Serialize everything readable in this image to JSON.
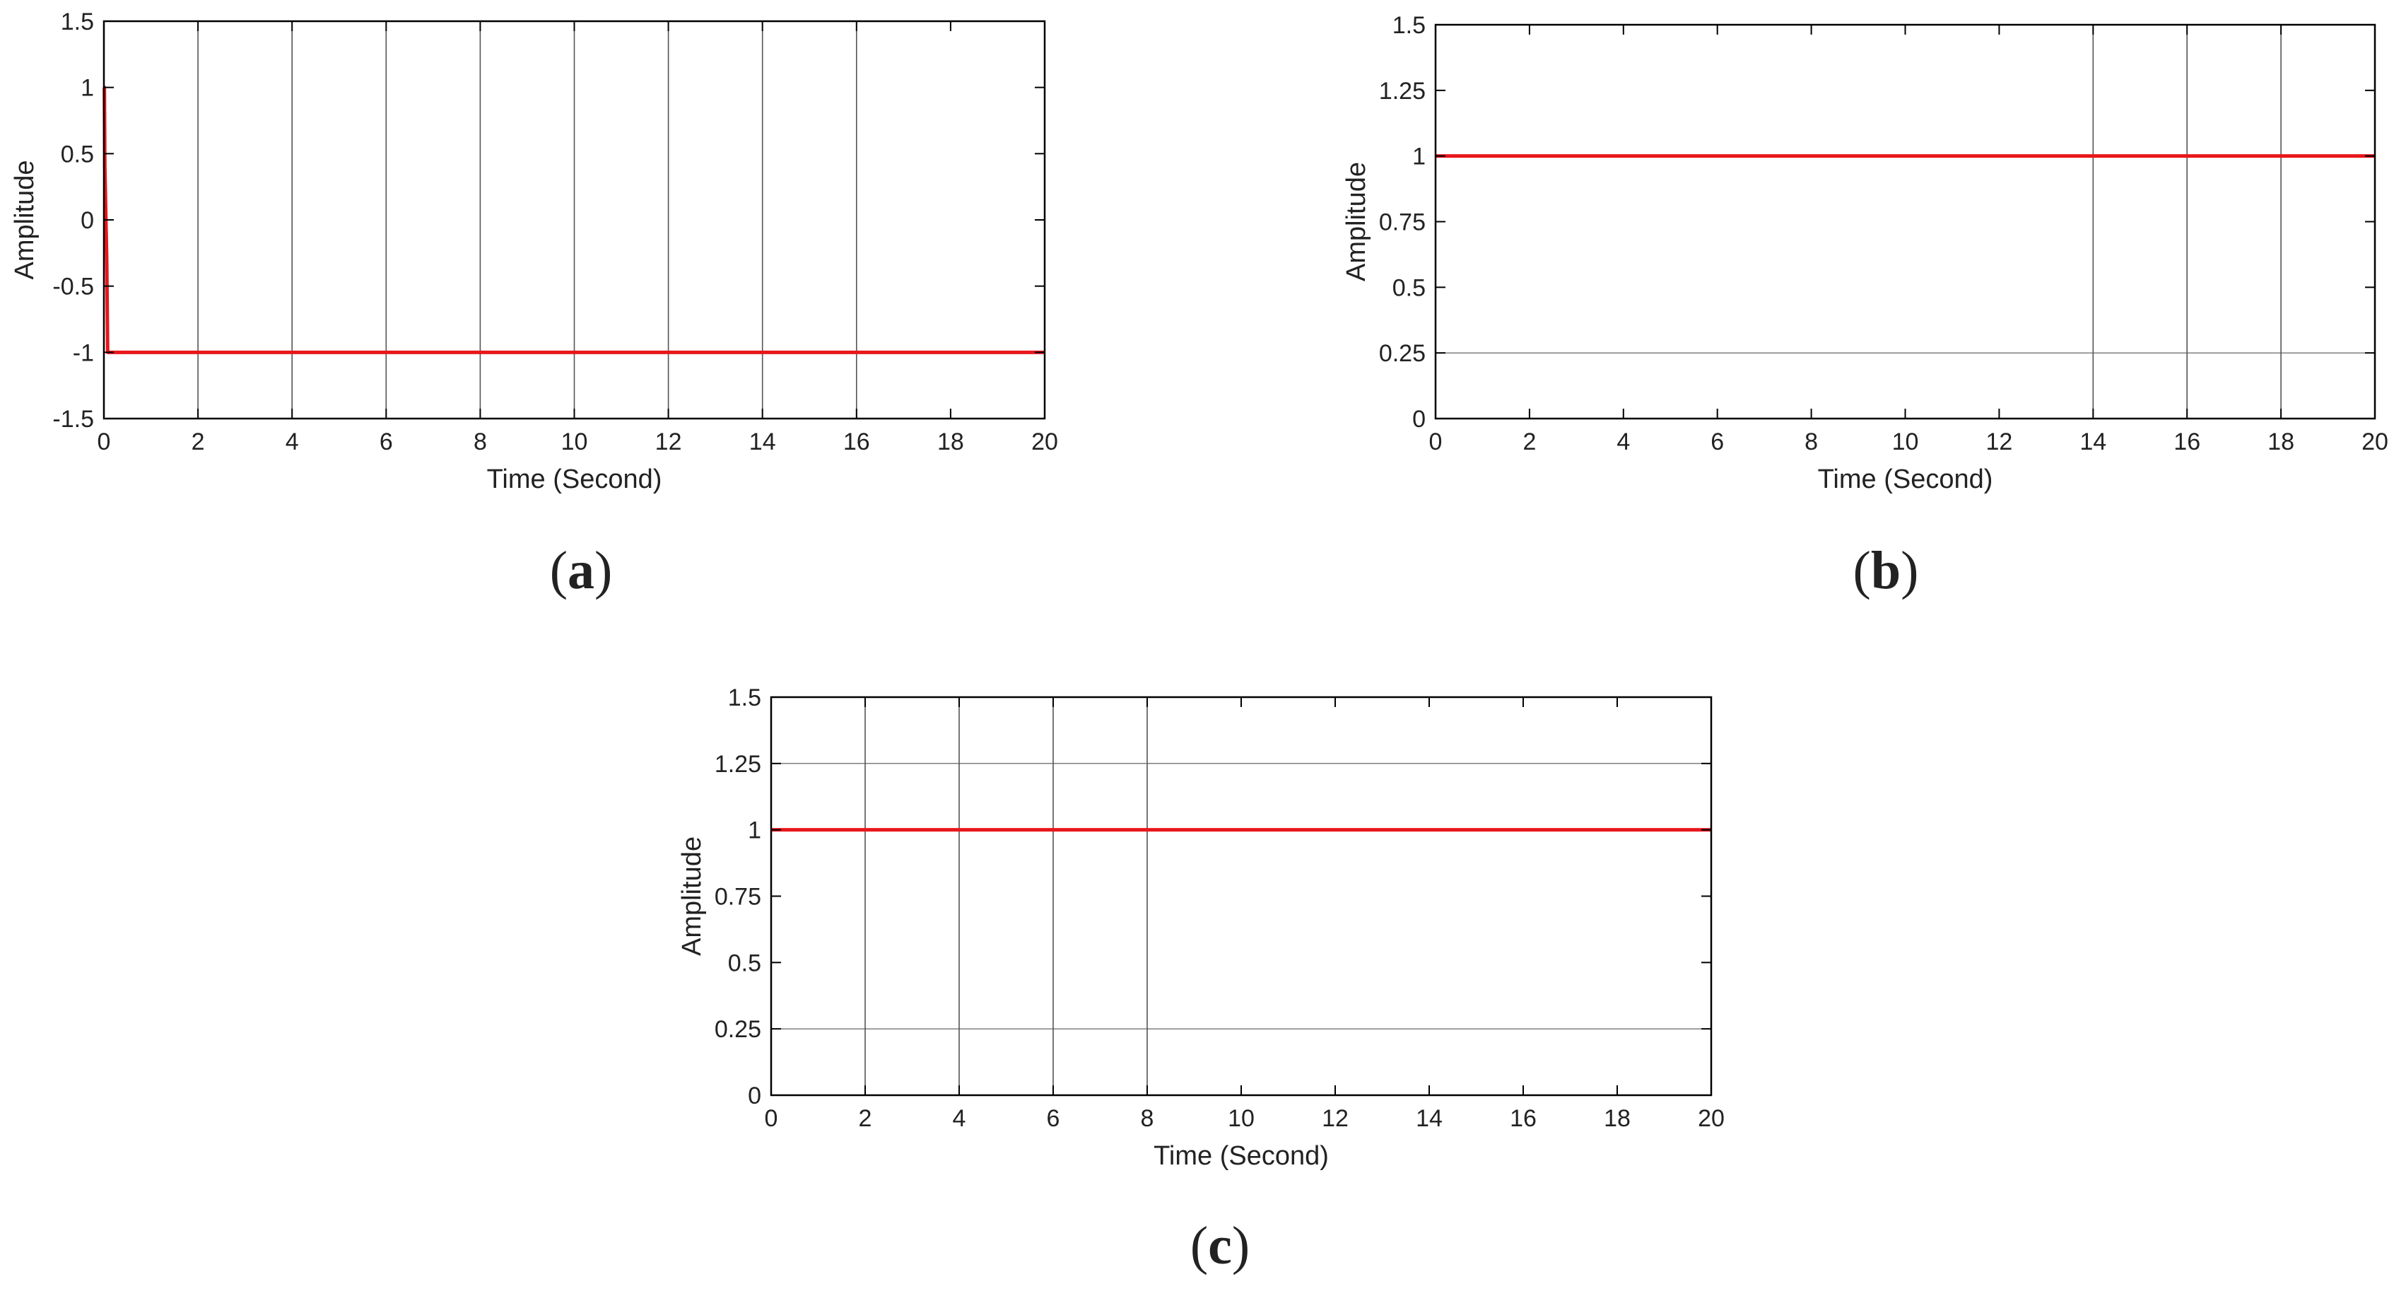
{
  "chart_data": [
    {
      "type": "line",
      "panel_label": "a",
      "xlabel": "Time (Second)",
      "ylabel": "Amplitude",
      "xlim": [
        0,
        20
      ],
      "ylim": [
        -1.5,
        1.5
      ],
      "xticks": [
        0,
        2,
        4,
        6,
        8,
        10,
        12,
        14,
        16,
        18,
        20
      ],
      "xtick_labels": [
        "0",
        "2",
        "4",
        "6",
        "8",
        "10",
        "12",
        "14",
        "16",
        "18",
        "20"
      ],
      "yticks": [
        -1.5,
        -1,
        -0.5,
        0,
        0.5,
        1,
        1.5
      ],
      "ytick_labels": [
        "-1.5",
        "-1",
        "-0.5",
        "0",
        "0.5",
        "1",
        "1.5"
      ],
      "vgrid": [
        2,
        4,
        6,
        8,
        10,
        12,
        14,
        16
      ],
      "hgrid": [],
      "series": [
        {
          "color": "#e8161b",
          "x": [
            0,
            0.01,
            0.02,
            0.06,
            0.08,
            0.1,
            20
          ],
          "y": [
            1,
            1,
            0.4,
            -0.3,
            -1,
            -1,
            -1
          ]
        }
      ]
    },
    {
      "type": "line",
      "panel_label": "b",
      "xlabel": "Time (Second)",
      "ylabel": "Amplitude",
      "xlim": [
        0,
        20
      ],
      "ylim": [
        0,
        1.5
      ],
      "xticks": [
        0,
        2,
        4,
        6,
        8,
        10,
        12,
        14,
        16,
        18,
        20
      ],
      "xtick_labels": [
        "0",
        "2",
        "4",
        "6",
        "8",
        "10",
        "12",
        "14",
        "16",
        "18",
        "20"
      ],
      "yticks": [
        0,
        0.25,
        0.5,
        0.75,
        1,
        1.25,
        1.5
      ],
      "ytick_labels": [
        "0",
        "0.25",
        "0.5",
        "0.75",
        "1",
        "1.25",
        "1.5"
      ],
      "vgrid": [
        14,
        16,
        18
      ],
      "hgrid": [
        0.25
      ],
      "series": [
        {
          "color": "#e8161b",
          "x": [
            0,
            20
          ],
          "y": [
            1,
            1
          ]
        }
      ]
    },
    {
      "type": "line",
      "panel_label": "c",
      "xlabel": "Time (Second)",
      "ylabel": "Amplitude",
      "xlim": [
        0,
        20
      ],
      "ylim": [
        0,
        1.5
      ],
      "xticks": [
        0,
        2,
        4,
        6,
        8,
        10,
        12,
        14,
        16,
        18,
        20
      ],
      "xtick_labels": [
        "0",
        "2",
        "4",
        "6",
        "8",
        "10",
        "12",
        "14",
        "16",
        "18",
        "20"
      ],
      "yticks": [
        0,
        0.25,
        0.5,
        0.75,
        1,
        1.25,
        1.5
      ],
      "ytick_labels": [
        "0",
        "0.25",
        "0.5",
        "0.75",
        "1",
        "1.25",
        "1.5"
      ],
      "vgrid": [
        2,
        4,
        6,
        8
      ],
      "hgrid": [
        1.25,
        0.25
      ],
      "series": [
        {
          "color": "#e8161b",
          "x": [
            0,
            20
          ],
          "y": [
            1,
            1
          ]
        }
      ]
    }
  ],
  "colors": {
    "axis": "#000000",
    "grid": "#555555",
    "series": "#e8161b"
  }
}
